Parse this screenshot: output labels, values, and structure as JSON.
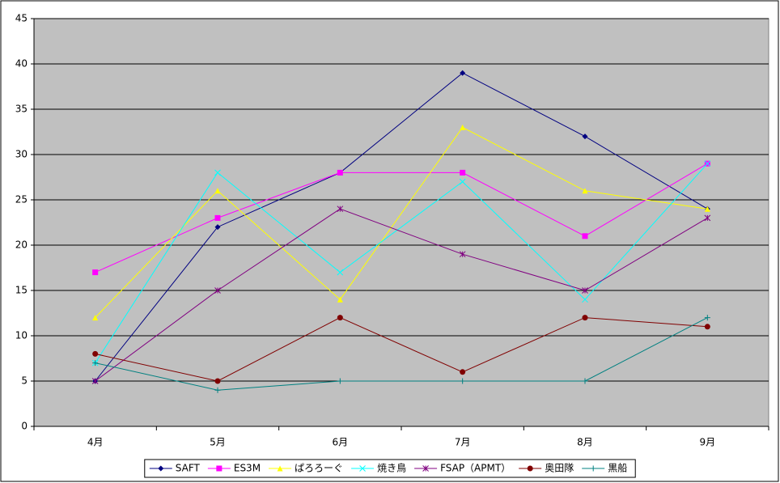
{
  "chart_data": {
    "type": "line",
    "categories": [
      "4月",
      "5月",
      "6月",
      "7月",
      "8月",
      "9月"
    ],
    "series": [
      {
        "name": "SAFT",
        "color": "#000080",
        "marker": "diamond",
        "values": [
          5,
          22,
          28,
          39,
          32,
          24
        ]
      },
      {
        "name": "ES3M",
        "color": "#ff00ff",
        "marker": "square",
        "values": [
          17,
          23,
          28,
          28,
          21,
          29
        ]
      },
      {
        "name": "ぱろろーぐ",
        "color": "#ffff00",
        "marker": "triangle",
        "values": [
          12,
          26,
          14,
          33,
          26,
          24
        ]
      },
      {
        "name": "焼き鳥",
        "color": "#00ffff",
        "marker": "x",
        "values": [
          7,
          28,
          17,
          27,
          14,
          29
        ]
      },
      {
        "name": "FSAP（APMT）",
        "color": "#800080",
        "marker": "star",
        "values": [
          5,
          15,
          24,
          19,
          15,
          23
        ]
      },
      {
        "name": "奥田隊",
        "color": "#800000",
        "marker": "circle",
        "values": [
          8,
          5,
          12,
          6,
          12,
          11
        ]
      },
      {
        "name": "黒船",
        "color": "#008080",
        "marker": "plus",
        "values": [
          7,
          4,
          5,
          5,
          5,
          12
        ]
      }
    ],
    "ylim": [
      0,
      45
    ],
    "yticks": [
      0,
      5,
      10,
      15,
      20,
      25,
      30,
      35,
      40,
      45
    ],
    "grid": true,
    "plot_background": "#c0c0c0",
    "legend": "bottom"
  }
}
